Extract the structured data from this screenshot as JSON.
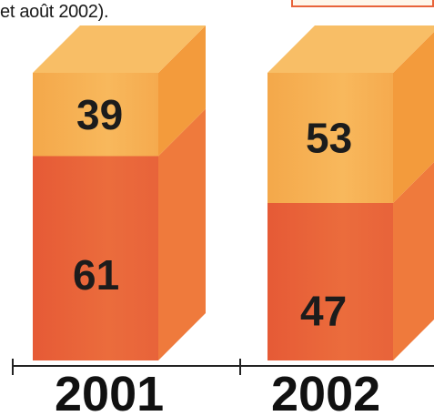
{
  "caption": "et août 2002).",
  "colors": {
    "top_segment": "#f6ad4f",
    "top_segment_top": "#f8be66",
    "top_segment_side": "#f39b3c",
    "bottom_segment": "#e8633a",
    "bottom_segment_side": "#ef7a3c",
    "axis": "#222222",
    "legend_border": "#e8633a"
  },
  "chart_data": {
    "type": "bar",
    "stacked": true,
    "categories": [
      "2001",
      "2002"
    ],
    "series": [
      {
        "values": [
          61,
          47
        ]
      },
      {
        "values": [
          39,
          53
        ]
      }
    ],
    "ylim": [
      0,
      100
    ],
    "grid": false,
    "legend": "top-right"
  }
}
